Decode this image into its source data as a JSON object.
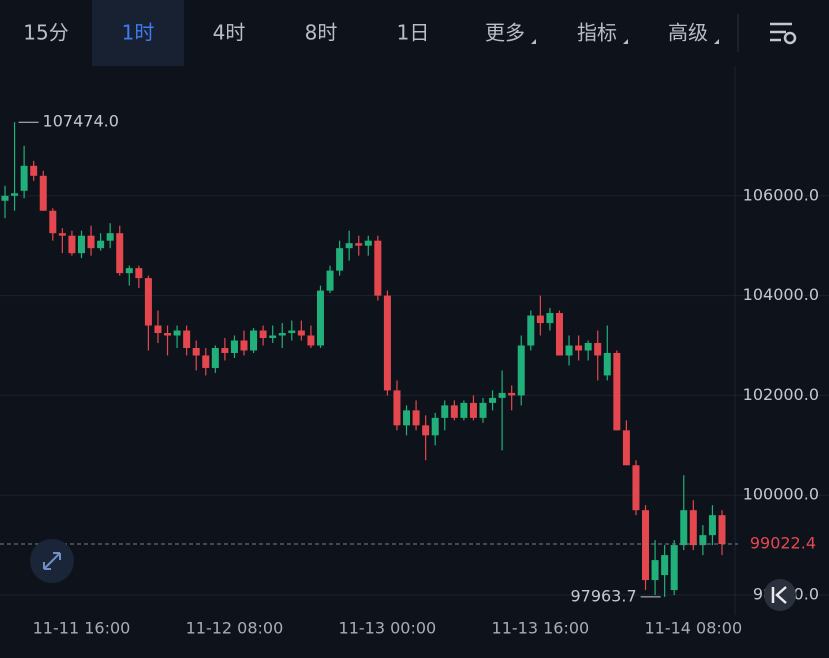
{
  "tabs": [
    "15分",
    "1时",
    "4时",
    "8时",
    "1日",
    "更多",
    "指标",
    "高级"
  ],
  "active_tab": "1时",
  "chart_data": {
    "type": "candlestick",
    "categories": [
      null,
      null,
      null,
      null,
      null,
      null,
      null,
      null,
      "11-11 16:00",
      null,
      null,
      null,
      null,
      null,
      null,
      null,
      null,
      null,
      null,
      null,
      null,
      null,
      null,
      null,
      "11-12 08:00",
      null,
      null,
      null,
      null,
      null,
      null,
      null,
      null,
      null,
      null,
      null,
      null,
      null,
      null,
      null,
      "11-13 00:00",
      null,
      null,
      null,
      null,
      null,
      null,
      null,
      null,
      null,
      null,
      null,
      null,
      null,
      null,
      null,
      "11-13 16:00",
      null,
      null,
      null,
      null,
      null,
      null,
      null,
      null,
      null,
      null,
      null,
      null,
      null,
      null,
      null,
      "11-14 08:00",
      null,
      null,
      null
    ],
    "open": [
      105900,
      106000,
      106100,
      106600,
      106400,
      105700,
      105250,
      105200,
      104850,
      105200,
      104950,
      105100,
      105250,
      104450,
      104550,
      104350,
      103400,
      103250,
      103200,
      103300,
      102950,
      102800,
      102550,
      102950,
      102850,
      103100,
      102900,
      103300,
      103150,
      103200,
      103250,
      103300,
      103200,
      103000,
      104100,
      104500,
      104950,
      105050,
      105000,
      105100,
      104000,
      102100,
      101400,
      101700,
      101400,
      101200,
      101550,
      101800,
      101550,
      101850,
      101550,
      101850,
      101950,
      102050,
      102000,
      103000,
      103600,
      103450,
      103650,
      102800,
      103000,
      102900,
      103050,
      102400,
      102850,
      101300,
      100600,
      99700,
      98300,
      98400,
      98100,
      99000,
      99700,
      99000,
      99200,
      99600
    ],
    "high": [
      106200,
      107474,
      107000,
      106700,
      106500,
      105750,
      105350,
      105300,
      105300,
      105400,
      105250,
      105450,
      105400,
      104600,
      104600,
      104400,
      103700,
      103400,
      103400,
      103400,
      103100,
      102950,
      103000,
      103150,
      103200,
      103300,
      103350,
      103400,
      103400,
      103450,
      103500,
      103500,
      103400,
      104200,
      104600,
      105100,
      105300,
      105200,
      105200,
      105200,
      104100,
      102300,
      101800,
      101900,
      101600,
      101650,
      101900,
      101900,
      101900,
      102000,
      101950,
      102100,
      102500,
      102200,
      103200,
      103700,
      104000,
      103750,
      103700,
      103200,
      103200,
      103100,
      103300,
      103400,
      102900,
      101500,
      100700,
      99800,
      99100,
      99000,
      99100,
      100400,
      99900,
      99400,
      99800,
      99700
    ],
    "low": [
      105550,
      105700,
      105950,
      106300,
      105700,
      105100,
      104850,
      104800,
      104750,
      104800,
      104900,
      104950,
      104400,
      104200,
      104150,
      102900,
      103050,
      102800,
      102950,
      102800,
      102500,
      102400,
      102450,
      102700,
      102750,
      102800,
      102850,
      103000,
      103050,
      102950,
      103100,
      103100,
      102950,
      102950,
      104050,
      104400,
      104700,
      104800,
      104800,
      103900,
      102000,
      101300,
      101200,
      101300,
      100700,
      101000,
      101300,
      101500,
      101500,
      101500,
      101450,
      101700,
      100900,
      101700,
      101800,
      102900,
      103200,
      103300,
      102800,
      102600,
      102700,
      102700,
      102300,
      102300,
      101300,
      100600,
      99600,
      98100,
      98000,
      97963.7,
      98000,
      98900,
      98900,
      98800,
      99000,
      98800
    ],
    "close": [
      106000,
      106050,
      106600,
      106400,
      105700,
      105250,
      105200,
      104850,
      105200,
      104950,
      105100,
      105250,
      104450,
      104550,
      104350,
      103400,
      103250,
      103200,
      103300,
      102950,
      102800,
      102550,
      102950,
      102850,
      103100,
      102900,
      103300,
      103150,
      103200,
      103250,
      103300,
      103200,
      103000,
      104100,
      104500,
      104950,
      105050,
      105000,
      105100,
      104000,
      102100,
      101400,
      101700,
      101400,
      101200,
      101550,
      101800,
      101550,
      101850,
      101550,
      101850,
      101950,
      102050,
      102000,
      103000,
      103600,
      103450,
      103650,
      102800,
      103000,
      102900,
      103050,
      102800,
      102850,
      101300,
      100600,
      99700,
      98300,
      98700,
      98800,
      99000,
      99700,
      99000,
      99200,
      99600,
      99022.4
    ],
    "up_color": "#21b07a",
    "down_color": "#e5474f",
    "ylim": [
      97600,
      108600
    ],
    "yticks": [
      {
        "value": 98000,
        "label": "98000.0"
      },
      {
        "value": 100000,
        "label": "100000.0"
      },
      {
        "value": 102000,
        "label": "102000.0"
      },
      {
        "value": 104000,
        "label": "104000.0"
      },
      {
        "value": 106000,
        "label": "106000.0"
      }
    ],
    "grid": true,
    "annotations": [
      {
        "value": 107474,
        "label": "107474.0"
      },
      {
        "value": 97963.7,
        "label": "97963.7"
      }
    ]
  }
}
